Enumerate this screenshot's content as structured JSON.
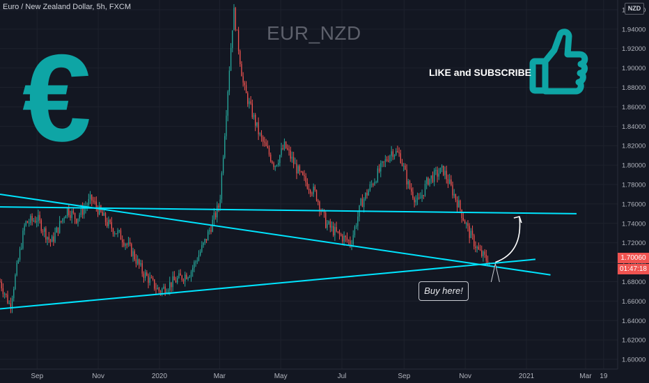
{
  "symbol_info": "Euro / New Zealand Dollar, 5h, FXCM",
  "chart_title": "EUR_NZD",
  "cta_text": "LIKE and SUBSCRIBE",
  "currency_button": "NZD",
  "callout_text": "Buy here!",
  "last_price_label": "1.70060",
  "countdown_label": "01:47:18",
  "icons": [
    "euro-sign-icon",
    "thumbs-up-icon"
  ],
  "colors": {
    "background": "#131722",
    "up_candle": "#26a69a",
    "down_candle": "#ef5350",
    "trendline": "#00e5ff",
    "icon_teal": "#0ea5a5",
    "grid": "#1e222d",
    "axis_text": "#b2b5be"
  },
  "chart_data": {
    "type": "candlestick",
    "title": "EUR_NZD",
    "ylim": [
      1.59,
      1.97
    ],
    "y_ticks": [
      "1.60000",
      "1.62000",
      "1.64000",
      "1.66000",
      "1.68000",
      "1.70000",
      "1.72000",
      "1.74000",
      "1.76000",
      "1.78000",
      "1.80000",
      "1.82000",
      "1.84000",
      "1.86000",
      "1.88000",
      "1.90000",
      "1.92000",
      "1.94000",
      "1.96000"
    ],
    "x_ticks": [
      "Sep",
      "Nov",
      "2020",
      "Mar",
      "May",
      "Jul",
      "Sep",
      "Nov",
      "2021",
      "Mar",
      "19"
    ],
    "grid": true,
    "last_price": 1.7006,
    "price_path": [
      [
        "2019-07-26",
        1.68
      ],
      [
        "2019-08-05",
        1.655
      ],
      [
        "2019-08-20",
        1.74
      ],
      [
        "2019-09-01",
        1.745
      ],
      [
        "2019-09-15",
        1.72
      ],
      [
        "2019-10-01",
        1.755
      ],
      [
        "2019-10-10",
        1.745
      ],
      [
        "2019-10-25",
        1.765
      ],
      [
        "2019-11-10",
        1.74
      ],
      [
        "2019-11-25",
        1.725
      ],
      [
        "2019-12-05",
        1.71
      ],
      [
        "2019-12-15",
        1.69
      ],
      [
        "2020-01-01",
        1.67
      ],
      [
        "2020-01-15",
        1.68
      ],
      [
        "2020-02-01",
        1.69
      ],
      [
        "2020-02-15",
        1.72
      ],
      [
        "2020-03-01",
        1.76
      ],
      [
        "2020-03-10",
        1.89
      ],
      [
        "2020-03-15",
        1.96
      ],
      [
        "2020-03-25",
        1.88
      ],
      [
        "2020-04-10",
        1.83
      ],
      [
        "2020-04-25",
        1.8
      ],
      [
        "2020-05-05",
        1.82
      ],
      [
        "2020-05-20",
        1.79
      ],
      [
        "2020-06-05",
        1.77
      ],
      [
        "2020-06-15",
        1.74
      ],
      [
        "2020-06-25",
        1.73
      ],
      [
        "2020-07-10",
        1.72
      ],
      [
        "2020-07-20",
        1.76
      ],
      [
        "2020-08-05",
        1.79
      ],
      [
        "2020-08-20",
        1.815
      ],
      [
        "2020-08-28",
        1.81
      ],
      [
        "2020-09-05",
        1.78
      ],
      [
        "2020-09-15",
        1.76
      ],
      [
        "2020-09-25",
        1.785
      ],
      [
        "2020-10-10",
        1.795
      ],
      [
        "2020-10-25",
        1.76
      ],
      [
        "2020-11-05",
        1.73
      ],
      [
        "2020-11-15",
        1.71
      ],
      [
        "2020-11-25",
        1.7
      ]
    ],
    "annotations": {
      "resistance": [
        [
          "2019-07-26",
          1.757
        ],
        [
          "2021-02-20",
          1.75
        ]
      ],
      "falling_trendline": [
        [
          "2019-07-26",
          1.77
        ],
        [
          "2021-01-25",
          1.687
        ]
      ],
      "rising_trendline": [
        [
          "2019-07-26",
          1.652
        ],
        [
          "2021-01-10",
          1.703
        ]
      ],
      "arrow": [
        [
          "2020-12-01",
          1.7
        ],
        [
          "2020-12-25",
          1.747
        ]
      ],
      "callout_point": [
        "2020-12-01",
        1.7
      ]
    }
  }
}
